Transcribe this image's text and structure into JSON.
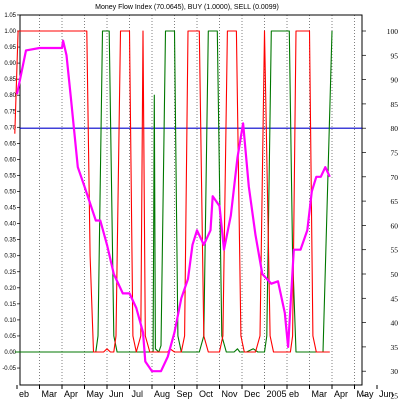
{
  "chart_data": {
    "type": "line",
    "title": "Money Flow Index (70.0645), BUY (1.0000), SELL (0.0099)",
    "x_labels": [
      "Feb",
      "Mar",
      "Apr",
      "May",
      "Jun",
      "Jul",
      "Aug",
      "Sep",
      "Oct",
      "Nov",
      "Dec",
      "2005",
      "Feb",
      "Mar",
      "Apr",
      "May",
      "Jun"
    ],
    "x_label_display": [
      "eb",
      "Mar",
      "Apr",
      "May",
      "Jun",
      "Jul",
      "Aug",
      "Sep",
      "Oct",
      "Nov",
      "Dec",
      "2005",
      "eb",
      "Mar",
      "Apr",
      "May",
      "Jun"
    ],
    "left_axis": {
      "ticks": [
        "1.05",
        "1.00",
        "0.95",
        "0.90",
        "0.85",
        "0.80",
        "0.75",
        "0.70",
        "0.65",
        "0.60",
        "0.55",
        "0.50",
        "0.45",
        "0.40",
        "0.35",
        "0.30",
        "0.25",
        "0.20",
        "0.15",
        "0.10",
        "0.05",
        "0.00",
        "-0.05"
      ],
      "range": [
        -0.05,
        1.05
      ]
    },
    "right_axis": {
      "ticks": [
        "100",
        "95",
        "90",
        "85",
        "80",
        "75",
        "70",
        "65",
        "60",
        "55",
        "50",
        "45",
        "40",
        "35",
        "30",
        "25"
      ],
      "range": [
        25,
        100
      ]
    },
    "reference_line": {
      "value": 80,
      "axis": "right",
      "color": "#0000cc"
    },
    "colors": {
      "mfi": "#ff00ff",
      "buy": "#007700",
      "sell": "#ff0000",
      "axis": "#000000"
    },
    "series": [
      {
        "key": "mfi",
        "axis": "right",
        "points": [
          [
            0,
            87
          ],
          [
            0.4,
            96
          ],
          [
            1,
            96.5
          ],
          [
            2,
            96.5
          ],
          [
            2.05,
            98
          ],
          [
            2.2,
            95
          ],
          [
            2.4,
            86
          ],
          [
            2.7,
            72
          ],
          [
            3,
            68
          ],
          [
            3.5,
            61
          ],
          [
            3.7,
            61
          ],
          [
            4,
            56
          ],
          [
            4.3,
            50
          ],
          [
            4.7,
            46
          ],
          [
            5,
            46
          ],
          [
            5.3,
            43
          ],
          [
            5.6,
            38
          ],
          [
            5.7,
            32
          ],
          [
            6,
            30
          ],
          [
            6.4,
            30
          ],
          [
            6.7,
            33
          ],
          [
            7,
            38
          ],
          [
            7.3,
            45
          ],
          [
            7.6,
            49
          ],
          [
            7.8,
            56
          ],
          [
            8,
            59
          ],
          [
            8.3,
            56
          ],
          [
            8.6,
            59
          ],
          [
            8.7,
            66
          ],
          [
            9,
            64
          ],
          [
            9.2,
            55
          ],
          [
            9.5,
            62
          ],
          [
            9.8,
            74
          ],
          [
            10.05,
            81
          ],
          [
            10.3,
            68
          ],
          [
            10.6,
            58
          ],
          [
            10.9,
            50
          ],
          [
            11.3,
            48
          ],
          [
            11.6,
            48.5
          ],
          [
            11.9,
            42
          ],
          [
            12.05,
            35
          ],
          [
            12.3,
            55
          ],
          [
            12.6,
            55
          ],
          [
            12.9,
            59
          ],
          [
            13.1,
            67
          ],
          [
            13.3,
            70
          ],
          [
            13.5,
            70
          ],
          [
            13.7,
            72
          ],
          [
            13.9,
            70
          ]
        ]
      },
      {
        "key": "buy",
        "axis": "left",
        "points": [
          [
            -0.1,
            0
          ],
          [
            3.5,
            0
          ],
          [
            3.6,
            0.05
          ],
          [
            3.8,
            1
          ],
          [
            4.1,
            1
          ],
          [
            4.3,
            0.05
          ],
          [
            4.45,
            0
          ],
          [
            6.05,
            0
          ],
          [
            6.1,
            0.8
          ],
          [
            6.15,
            0.01
          ],
          [
            6.3,
            0
          ],
          [
            6.4,
            0.02
          ],
          [
            6.6,
            1
          ],
          [
            7,
            1
          ],
          [
            7.15,
            0.05
          ],
          [
            7.3,
            0
          ],
          [
            8.1,
            0
          ],
          [
            8.3,
            0.05
          ],
          [
            8.5,
            1
          ],
          [
            8.9,
            1
          ],
          [
            9.1,
            0.05
          ],
          [
            9.3,
            0
          ],
          [
            9.65,
            0
          ],
          [
            9.8,
            0.01
          ],
          [
            9.9,
            0
          ],
          [
            10.2,
            0
          ],
          [
            10.5,
            0.01
          ],
          [
            10.7,
            0
          ],
          [
            11.0,
            0
          ],
          [
            11.1,
            0.05
          ],
          [
            11.3,
            1
          ],
          [
            12.1,
            1
          ],
          [
            12.25,
            0.3
          ],
          [
            12.4,
            0
          ],
          [
            13.6,
            0
          ],
          [
            13.8,
            0.5
          ],
          [
            14,
            1
          ]
        ]
      },
      {
        "key": "sell",
        "axis": "left",
        "points": [
          [
            -0.1,
            0.68
          ],
          [
            0.05,
            1
          ],
          [
            3.1,
            1
          ],
          [
            3.25,
            0.3
          ],
          [
            3.4,
            0
          ],
          [
            3.85,
            0
          ],
          [
            4.0,
            0.01
          ],
          [
            4.15,
            0
          ],
          [
            4.3,
            0
          ],
          [
            4.4,
            0.05
          ],
          [
            4.6,
            1
          ],
          [
            5.0,
            1
          ],
          [
            5.15,
            0.05
          ],
          [
            5.3,
            0
          ],
          [
            5.5,
            0.05
          ],
          [
            5.6,
            1
          ],
          [
            5.7,
            0.05
          ],
          [
            5.9,
            0
          ],
          [
            6.7,
            0
          ],
          [
            6.8,
            0.01
          ],
          [
            7.0,
            0
          ],
          [
            7.3,
            0
          ],
          [
            7.45,
            0.05
          ],
          [
            7.6,
            1
          ],
          [
            8.1,
            1
          ],
          [
            8.3,
            0.05
          ],
          [
            8.5,
            0
          ],
          [
            9.0,
            0
          ],
          [
            9.15,
            0.05
          ],
          [
            9.35,
            1
          ],
          [
            9.75,
            1
          ],
          [
            9.95,
            0.05
          ],
          [
            10.1,
            0
          ],
          [
            10.6,
            0
          ],
          [
            10.8,
            0.05
          ],
          [
            11.0,
            1
          ],
          [
            11.25,
            0.05
          ],
          [
            11.4,
            0
          ],
          [
            12.15,
            0
          ],
          [
            12.25,
            0.05
          ],
          [
            12.4,
            1
          ],
          [
            13.0,
            1
          ],
          [
            13.15,
            0.05
          ],
          [
            13.3,
            0
          ],
          [
            13.9,
            0
          ]
        ]
      }
    ]
  }
}
